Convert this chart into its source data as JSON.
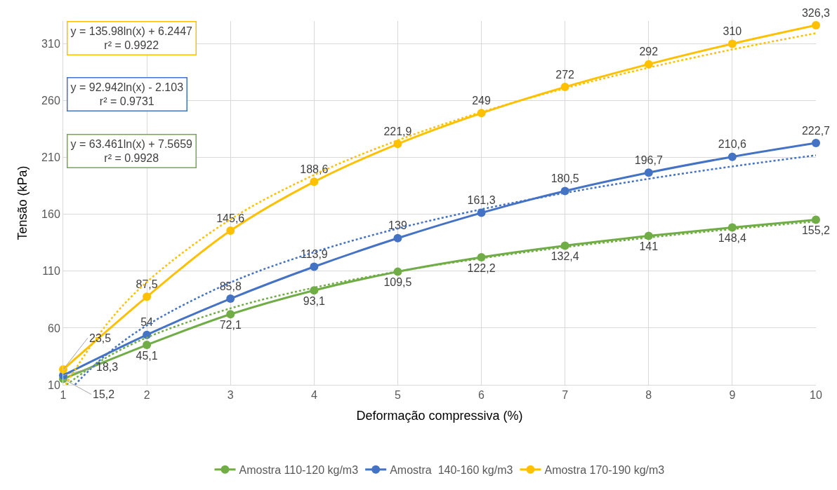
{
  "chart_data": {
    "type": "line",
    "xlabel": "Deformação compressiva (%)",
    "ylabel": "Tensão (kPa)",
    "x": [
      1,
      2,
      3,
      4,
      5,
      6,
      7,
      8,
      9,
      10
    ],
    "xlim": [
      1,
      10
    ],
    "xticks": [
      1,
      2,
      3,
      4,
      5,
      6,
      7,
      8,
      9,
      10
    ],
    "ylim": [
      10,
      330
    ],
    "yticks": [
      10,
      60,
      110,
      160,
      210,
      260,
      310
    ],
    "grid": true,
    "legend": "bottom",
    "marker": "circle",
    "series": [
      {
        "name": "Amostra 110-120 kg/m3",
        "color": "#70ad47",
        "values": [
          15.2,
          45.1,
          72.1,
          93.1,
          109.5,
          122.2,
          132.4,
          141,
          148.4,
          155.2
        ],
        "value_labels": [
          "15,2",
          "45,1",
          "72,1",
          "93,1",
          "109,5",
          "122,2",
          "132,4",
          "141",
          "148,4",
          "155,2"
        ]
      },
      {
        "name": "Amostra  140-160 kg/m3",
        "color": "#4472c4",
        "values": [
          18.3,
          54,
          85.8,
          113.9,
          139,
          161.3,
          180.5,
          196.7,
          210.6,
          222.7
        ],
        "value_labels": [
          "18,3",
          "54",
          "85,8",
          "113,9",
          "139",
          "161,3",
          "180,5",
          "196,7",
          "210,6",
          "222,7"
        ]
      },
      {
        "name": "Amostra 170-190 kg/m3",
        "color": "#ffc000",
        "values": [
          23.5,
          87.5,
          145.6,
          188.6,
          221.9,
          249,
          272,
          292,
          310,
          326.3
        ],
        "value_labels": [
          "23,5",
          "87,5",
          "145,6",
          "188,6",
          "221,9",
          "249",
          "272",
          "292",
          "310",
          "326,3"
        ]
      },
      {
        "type": "line",
        "color": "#70ad47",
        "line_style": "dotted",
        "marker": "none",
        "x": [
          1.04,
          1.5,
          2,
          3,
          4,
          5,
          6,
          7,
          8,
          9,
          10
        ],
        "values": [
          10.1,
          33.3,
          51.6,
          77.3,
          95.5,
          109.7,
          121.3,
          131.1,
          139.5,
          147.0,
          153.7
        ]
      },
      {
        "type": "line",
        "color": "#4472c4",
        "line_style": "dotted",
        "marker": "none",
        "x": [
          1.14,
          1.5,
          2,
          3,
          4,
          5,
          6,
          7,
          8,
          9,
          10
        ],
        "values": [
          10.1,
          35.6,
          62.3,
          100.0,
          126.7,
          147.5,
          164.4,
          178.8,
          191.2,
          202.1,
          211.9
        ]
      },
      {
        "type": "line",
        "color": "#ffc000",
        "line_style": "dotted",
        "marker": "none",
        "x": [
          1.03,
          1.5,
          2,
          3,
          4,
          5,
          6,
          7,
          8,
          9,
          10
        ],
        "values": [
          10.3,
          61.4,
          100.5,
          155.6,
          194.7,
          225.1,
          249.9,
          270.8,
          289.0,
          305.0,
          319.3
        ]
      }
    ],
    "annotations": [
      "y = 135.98ln(x) + 6.2447\nr² = 0.9922",
      "y = 92.942ln(x) - 2.103\nr² = 0.9731",
      "y = 63.461ln(x) + 7.5659\nr² = 0.9928"
    ]
  }
}
